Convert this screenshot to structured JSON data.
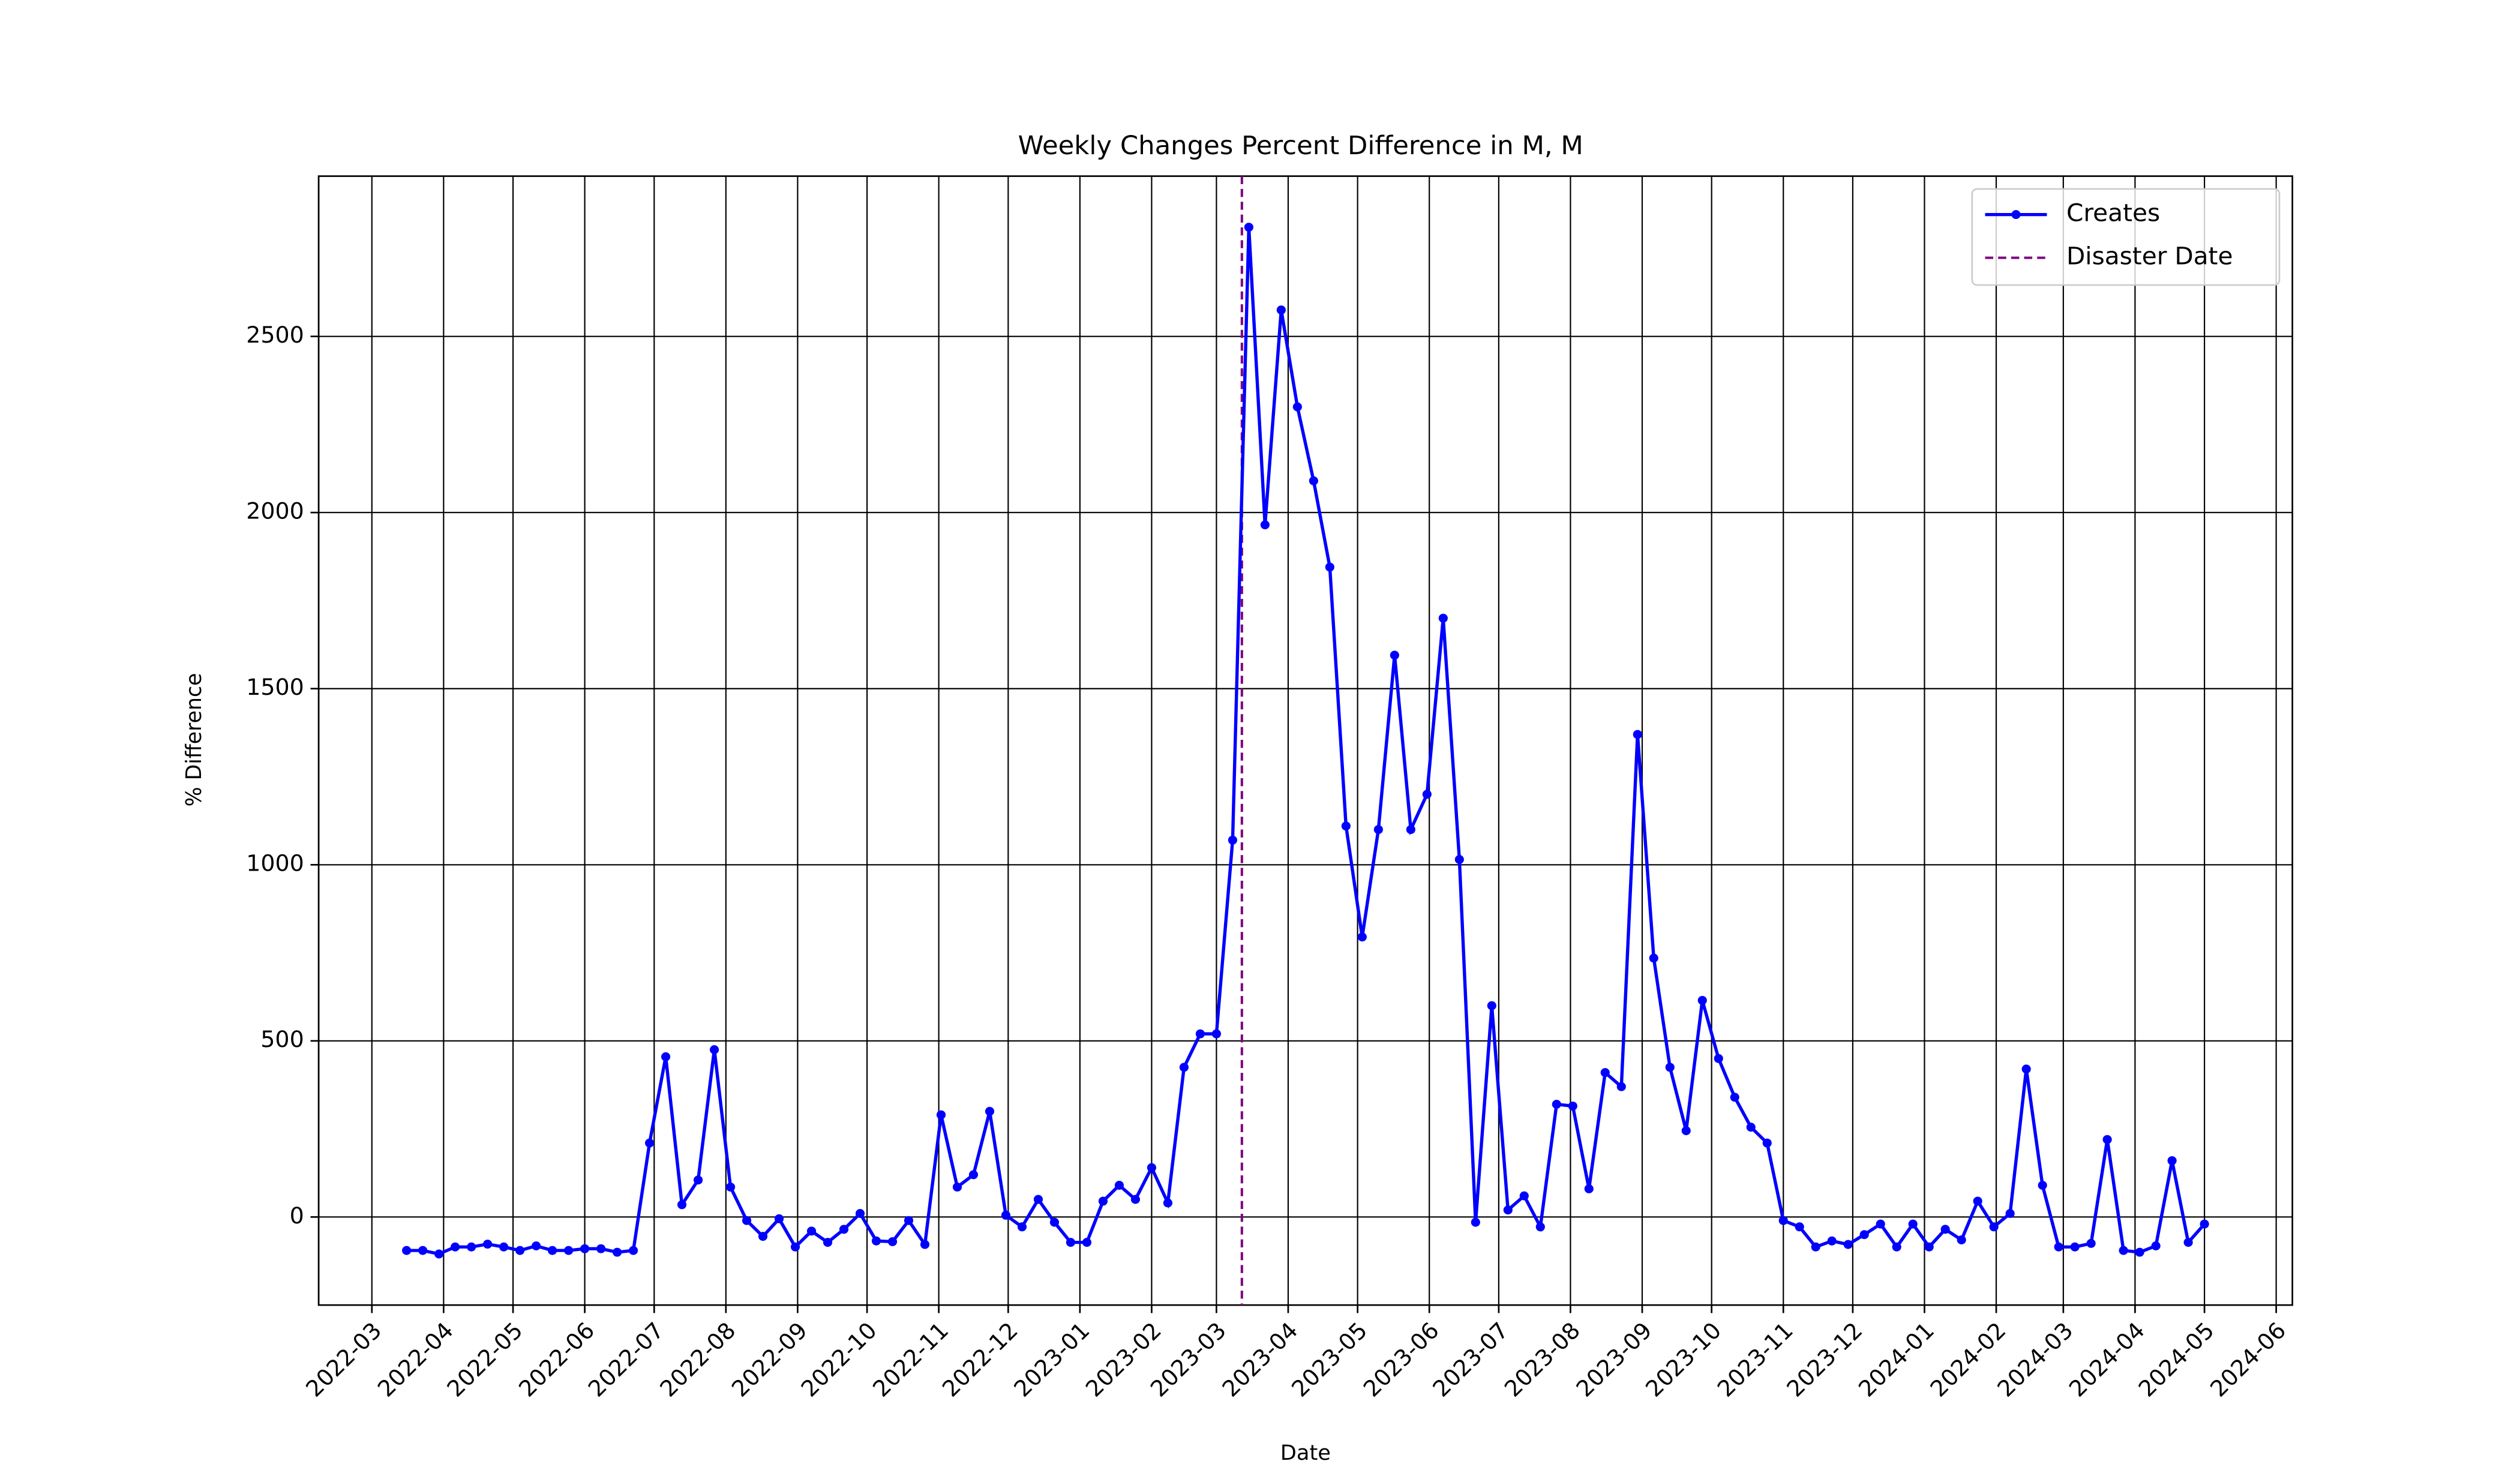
{
  "chart_data": {
    "type": "line",
    "title": "Weekly Changes Percent Difference in M, M",
    "xlabel": "Date",
    "ylabel": "% Difference",
    "x": [
      "2022-03-16",
      "2022-03-23",
      "2022-03-30",
      "2022-04-06",
      "2022-04-13",
      "2022-04-20",
      "2022-04-27",
      "2022-05-04",
      "2022-05-11",
      "2022-05-18",
      "2022-05-25",
      "2022-06-01",
      "2022-06-08",
      "2022-06-15",
      "2022-06-22",
      "2022-06-29",
      "2022-07-06",
      "2022-07-13",
      "2022-07-20",
      "2022-07-27",
      "2022-08-03",
      "2022-08-10",
      "2022-08-17",
      "2022-08-24",
      "2022-08-31",
      "2022-09-07",
      "2022-09-14",
      "2022-09-21",
      "2022-09-28",
      "2022-10-05",
      "2022-10-12",
      "2022-10-19",
      "2022-10-26",
      "2022-11-02",
      "2022-11-09",
      "2022-11-16",
      "2022-11-23",
      "2022-11-30",
      "2022-12-07",
      "2022-12-14",
      "2022-12-21",
      "2022-12-28",
      "2023-01-04",
      "2023-01-11",
      "2023-01-18",
      "2023-01-25",
      "2023-02-01",
      "2023-02-08",
      "2023-02-15",
      "2023-02-22",
      "2023-03-01",
      "2023-03-08",
      "2023-03-15",
      "2023-03-22",
      "2023-03-29",
      "2023-04-05",
      "2023-04-12",
      "2023-04-19",
      "2023-04-26",
      "2023-05-03",
      "2023-05-10",
      "2023-05-17",
      "2023-05-24",
      "2023-05-31",
      "2023-06-07",
      "2023-06-14",
      "2023-06-21",
      "2023-06-28",
      "2023-07-05",
      "2023-07-12",
      "2023-07-19",
      "2023-07-26",
      "2023-08-02",
      "2023-08-09",
      "2023-08-16",
      "2023-08-23",
      "2023-08-30",
      "2023-09-06",
      "2023-09-13",
      "2023-09-20",
      "2023-09-27",
      "2023-10-04",
      "2023-10-11",
      "2023-10-18",
      "2023-10-25",
      "2023-11-01",
      "2023-11-08",
      "2023-11-15",
      "2023-11-22",
      "2023-11-29",
      "2023-12-06",
      "2023-12-13",
      "2023-12-20",
      "2023-12-27",
      "2024-01-03",
      "2024-01-10",
      "2024-01-17",
      "2024-01-24",
      "2024-01-31",
      "2024-02-07",
      "2024-02-14",
      "2024-02-21",
      "2024-02-28",
      "2024-03-06",
      "2024-03-13",
      "2024-03-20",
      "2024-03-27",
      "2024-04-03",
      "2024-04-10",
      "2024-04-17",
      "2024-04-24",
      "2024-05-01"
    ],
    "series": [
      {
        "name": "Creates",
        "color": "#0000ff",
        "values": [
          -95,
          -95,
          -105,
          -85,
          -85,
          -77,
          -85,
          -95,
          -82,
          -95,
          -95,
          -90,
          -90,
          -100,
          -95,
          210,
          455,
          35,
          105,
          475,
          85,
          -10,
          -55,
          -5,
          -85,
          -40,
          -72,
          -35,
          10,
          -68,
          -70,
          -10,
          -78,
          290,
          85,
          120,
          300,
          5,
          -28,
          50,
          -15,
          -72,
          -72,
          45,
          90,
          50,
          140,
          40,
          425,
          520,
          520,
          1070,
          2810,
          1965,
          2575,
          2300,
          2090,
          1845,
          1110,
          795,
          1100,
          1595,
          1100,
          1200,
          1700,
          1015,
          -15,
          600,
          20,
          60,
          -28,
          320,
          315,
          80,
          410,
          370,
          1370,
          735,
          425,
          245,
          615,
          450,
          340,
          255,
          210,
          -10,
          -28,
          -85,
          -68,
          -78,
          -50,
          -20,
          -85,
          -20,
          -85,
          -35,
          -65,
          45,
          -28,
          10,
          420,
          90,
          -85,
          -85,
          -75,
          220,
          -95,
          -100,
          -82,
          160,
          -72,
          -20
        ]
      }
    ],
    "disaster_label": "Disaster Date",
    "disaster_date": "2023-03-12",
    "disaster_color": "#800080",
    "xlim": [
      "2022-02-06",
      "2024-06-08"
    ],
    "xticks": [
      "2022-03",
      "2022-04",
      "2022-05",
      "2022-06",
      "2022-07",
      "2022-08",
      "2022-09",
      "2022-10",
      "2022-11",
      "2022-12",
      "2023-01",
      "2023-02",
      "2023-03",
      "2023-04",
      "2023-05",
      "2023-06",
      "2023-07",
      "2023-08",
      "2023-09",
      "2023-10",
      "2023-11",
      "2023-12",
      "2024-01",
      "2024-02",
      "2024-03",
      "2024-04",
      "2024-05",
      "2024-06"
    ],
    "ylim": [
      -250,
      2955
    ],
    "yticks": [
      0,
      500,
      1000,
      1500,
      2000,
      2500
    ],
    "grid": true,
    "legend": "upper right"
  }
}
